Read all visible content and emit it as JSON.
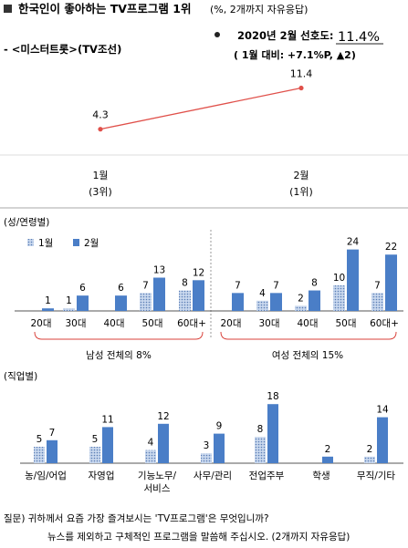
{
  "header": {
    "title_bold": "한국인이 좋아하는 TV프로그램 1위",
    "title_note": "(%, 2개까지 자유응답)",
    "program": "- <미스터트롯>(TV조선)",
    "stat_label": "2020년 2월 선호도:",
    "stat_value": "11.4%",
    "stat_change": "( 1월 대비: +7.1%P,  ▲2)"
  },
  "chart_data": [
    {
      "type": "line",
      "categories": [
        "1월",
        "2월"
      ],
      "sub_labels": [
        "(3위)",
        "(1위)"
      ],
      "values": [
        4.3,
        11.4
      ],
      "value_labels": [
        "4.3",
        "11.4"
      ],
      "ylim": [
        0,
        14
      ]
    },
    {
      "type": "bar",
      "section_label": "(성/연령별)",
      "legend": [
        "1월",
        "2월"
      ],
      "categories": [
        "20대",
        "30대",
        "40대",
        "50대",
        "60대+",
        "20대",
        "30대",
        "40대",
        "50대",
        "60대+"
      ],
      "series": [
        {
          "name": "1월",
          "values": [
            0,
            1,
            0,
            7,
            8,
            0,
            4,
            2,
            10,
            7
          ],
          "labels": [
            "",
            "1",
            "",
            "7",
            "8",
            "",
            "4",
            "2",
            "10",
            "7"
          ]
        },
        {
          "name": "2월",
          "values": [
            1,
            6,
            6,
            13,
            12,
            7,
            7,
            8,
            24,
            22
          ],
          "labels": [
            "1",
            "6",
            "6",
            "13",
            "12",
            "7",
            "7",
            "8",
            "24",
            "22"
          ]
        }
      ],
      "group_labels": [
        "남성 전체의 8%",
        "여성 전체의 15%"
      ],
      "ylim": [
        0,
        26
      ]
    },
    {
      "type": "bar",
      "section_label": "(직업별)",
      "categories": [
        "농/임/어업",
        "자영업",
        "기능노무/\n서비스",
        "사무/관리",
        "전업주부",
        "학생",
        "무직/기타"
      ],
      "series": [
        {
          "name": "1월",
          "values": [
            5,
            5,
            4,
            3,
            8,
            0,
            2
          ],
          "labels": [
            "5",
            "5",
            "4",
            "3",
            "8",
            "",
            "2"
          ]
        },
        {
          "name": "2월",
          "values": [
            7,
            11,
            12,
            9,
            18,
            2,
            14
          ],
          "labels": [
            "7",
            "11",
            "12",
            "9",
            "18",
            "2",
            "14"
          ]
        }
      ],
      "ylim": [
        0,
        20
      ]
    }
  ],
  "footer": {
    "line1": "질문) 귀하께서 요즘 가장 즐겨보시는 'TV프로그램'은 무엇입니까?",
    "line2": "뉴스를 제외하고 구체적인 프로그램을 말씀해 주십시오. (2개까지 자유응답)"
  },
  "colors": {
    "line": "#e0504a",
    "bar_feb": "#4a7ec7",
    "bar_jan": "#a9c1e4",
    "bracket": "#d9423b"
  }
}
